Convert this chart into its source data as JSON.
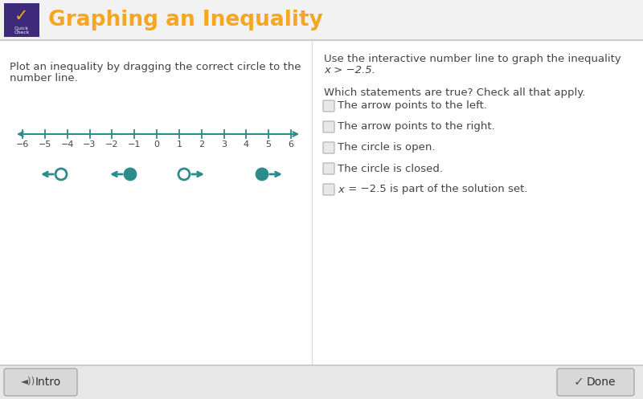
{
  "bg_color": "#ffffff",
  "header_bg": "#f2f2f2",
  "header_border": "#cccccc",
  "header_title": "Graphing an Inequality",
  "header_title_color": "#f5a623",
  "header_icon_bg": "#3d2b7a",
  "left_instruction_line1": "Plot an inequality by dragging the correct circle to the",
  "left_instruction_line2": "number line.",
  "right_title_line1": "Use the interactive number line to graph the inequality",
  "right_title_line2": "x > −2.5.",
  "statements_title": "Which statements are true? Check all that apply.",
  "statements": [
    "The arrow points to the left.",
    "The arrow points to the right.",
    "The circle is open.",
    "The circle is closed.",
    "x = −2.5 is part of the solution set."
  ],
  "number_line_color": "#2e8b8b",
  "number_line_ticks": [
    -6,
    -5,
    -4,
    -3,
    -2,
    -1,
    0,
    1,
    2,
    3,
    4,
    5,
    6
  ],
  "choice_color": "#2e8b8b",
  "footer_bg": "#e8e8e8",
  "footer_border": "#cccccc",
  "intro_text": "Intro",
  "done_text": "Done",
  "text_color": "#444444",
  "checkbox_color": "#bbbbbb",
  "checkbox_face": "#e8e8e8"
}
